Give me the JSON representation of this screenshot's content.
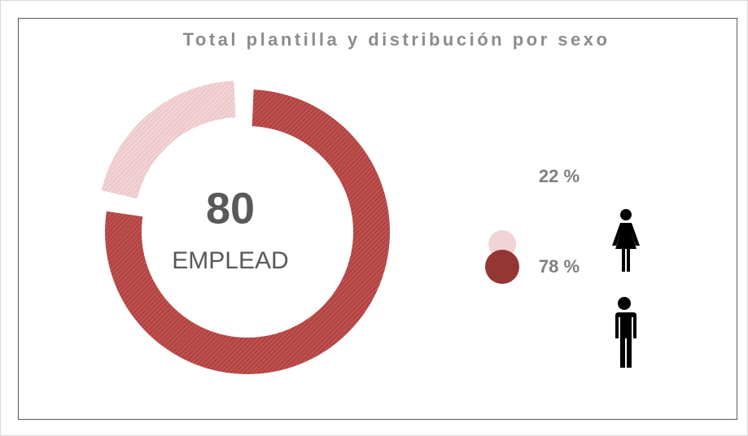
{
  "chart_data": {
    "type": "donut",
    "title": "Total plantilla y distribución por sexo",
    "total": 80,
    "total_label": "EMPLEAD",
    "values": [
      22,
      78
    ],
    "value_labels": [
      "22 %",
      "78 %"
    ],
    "colors": [
      "#f2d4d6",
      "#c0504d"
    ]
  }
}
